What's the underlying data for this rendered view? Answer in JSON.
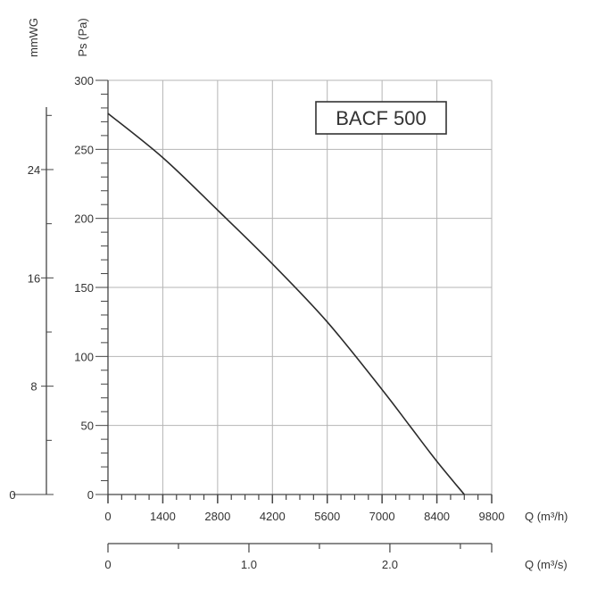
{
  "chart_data": {
    "type": "line",
    "title": "BACF 500",
    "x_label": "Q (m³/h)",
    "x2_label": "Q (m³/s)",
    "y_label": "Ps (Pa)",
    "y2_label": "mmWG",
    "xlim": [
      0,
      9800
    ],
    "ylim": [
      0,
      300
    ],
    "x_ticks": [
      0,
      1400,
      2800,
      4200,
      5600,
      7000,
      8400,
      9800
    ],
    "x_tick_labels": [
      "0",
      "1400",
      "2800",
      "4200",
      "5600",
      "7000",
      "8400",
      "9800"
    ],
    "y_ticks": [
      0,
      50,
      100,
      150,
      200,
      250,
      300
    ],
    "y_tick_labels": [
      "0",
      "50",
      "100",
      "150",
      "200",
      "250",
      "300"
    ],
    "x2_ticks": [
      0,
      1.0,
      2.0
    ],
    "x2_tick_labels": [
      "0",
      "1.0",
      "2.0"
    ],
    "y2_ticks": [
      0,
      8,
      16,
      24
    ],
    "y2_tick_labels": [
      "0",
      "8",
      "16",
      "24"
    ],
    "grid": true,
    "series": [
      {
        "x": [
          0,
          1400,
          2800,
          4200,
          5600,
          7000,
          7700,
          8400,
          9100
        ],
        "y": [
          276,
          244,
          206,
          167,
          125,
          76,
          50,
          24,
          0
        ]
      }
    ],
    "colors": {
      "curve": "#2b2b2b",
      "grid": "#b5b5b5",
      "axis": "#444444"
    }
  }
}
